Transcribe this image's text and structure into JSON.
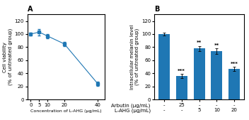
{
  "chart_data": [
    {
      "type": "line",
      "title": "A",
      "x": [
        0,
        5,
        10,
        20,
        40
      ],
      "values": [
        100,
        103,
        97,
        85,
        24
      ],
      "yerr": [
        2,
        5,
        3,
        3,
        3
      ],
      "xlabel": "Concentration of L-AHG (μg/mL)",
      "ylabel": "Cell viability\n(% of untreated group)",
      "xlim": [
        -2,
        44
      ],
      "ylim": [
        0,
        130
      ],
      "xticks": [
        0,
        5,
        10,
        20,
        40
      ],
      "yticks": [
        0,
        20,
        40,
        60,
        80,
        100,
        120
      ],
      "marker": "square",
      "line_style": "solid"
    },
    {
      "type": "bar",
      "title": "B",
      "categories": [
        "-\n-",
        "25\n-",
        "-\n5",
        "-\n10",
        "-\n20"
      ],
      "values": [
        100,
        36,
        78,
        74,
        47
      ],
      "yerr": [
        2,
        3,
        4,
        4,
        3
      ],
      "xlabel": "Arbutin (μg/mL)\nL-AHG (μg/mL)",
      "ylabel": "Intracellular melanin level\n(% of untreated group)",
      "ylim": [
        0,
        130
      ],
      "yticks": [
        0,
        20,
        40,
        60,
        80,
        100,
        120
      ],
      "annotations": [
        {
          "category": "25\n-",
          "text": "***"
        },
        {
          "category": "-\n5",
          "text": "**"
        },
        {
          "category": "-\n10",
          "text": "**"
        },
        {
          "category": "-\n20",
          "text": "***"
        }
      ]
    }
  ]
}
